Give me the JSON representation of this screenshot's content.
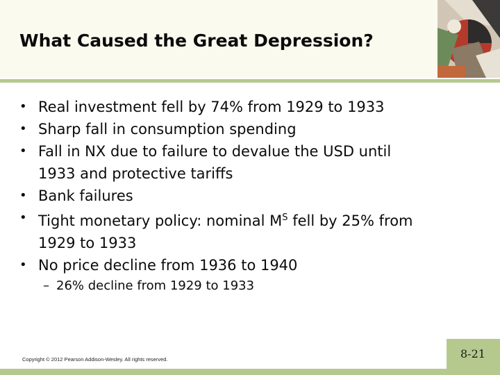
{
  "slide": {
    "title": "What Caused the Great Depression?",
    "bullets": [
      {
        "lines": [
          "Real investment fell by 74% from 1929 to 1933"
        ]
      },
      {
        "lines": [
          "Sharp fall in consumption spending"
        ]
      },
      {
        "lines": [
          "Fall in NX due to failure to devalue the USD until",
          "1933 and protective tariffs"
        ]
      },
      {
        "lines": [
          "Bank failures"
        ]
      },
      {
        "lines_special": true,
        "pre": "Tight monetary policy: nominal M",
        "superscript": "S",
        "post": " fell by 25% from",
        "line2": "1929 to 1933"
      },
      {
        "lines": [
          "No price decline from 1936 to 1940"
        ]
      }
    ],
    "bullet_symbol": "•",
    "sub_bullet": {
      "dash": "–",
      "text": "26% decline from 1929 to 1933"
    }
  },
  "footer": {
    "copyright": "Copyright © 2012 Pearson Addison-Wesley. All rights reserved.",
    "page_number": "8-21"
  },
  "colors": {
    "title_band": "#fbfaee",
    "accent_green": "#b5c98f",
    "text": "#0b0b0b"
  }
}
